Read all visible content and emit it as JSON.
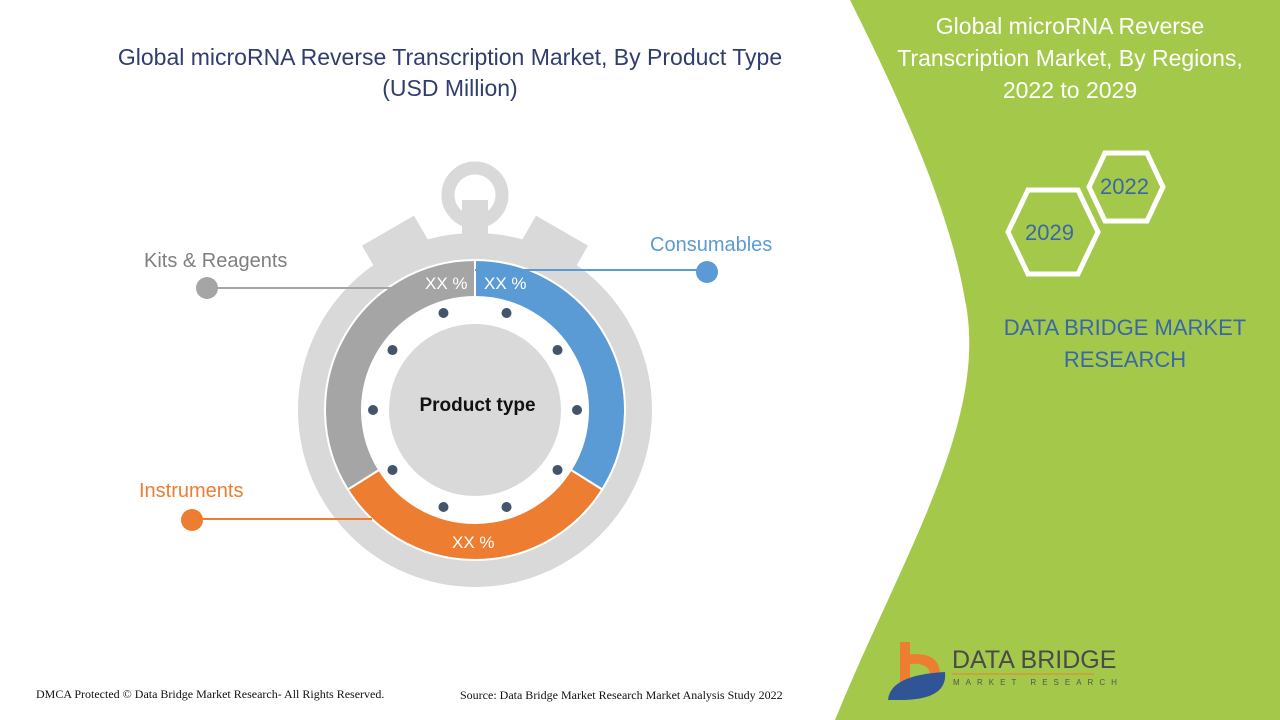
{
  "left_panel": {
    "title_line1": "Global microRNA Reverse Transcription Market, By Product Type",
    "title_line2": "(USD Million)",
    "center_label": "Product type",
    "segments": [
      {
        "name": "Consumables",
        "value_label": "XX %",
        "color": "#5b9bd5"
      },
      {
        "name": "Instruments",
        "value_label": "XX %",
        "color": "#ed7d31"
      },
      {
        "name": "Kits & Reagents",
        "value_label": "XX %",
        "color": "#a5a5a5"
      }
    ]
  },
  "right_panel": {
    "title_line1": "Global microRNA Reverse",
    "title_line2": "Transcription Market, By Regions,",
    "title_line3": "2022 to 2029",
    "year_start": "2022",
    "year_end": "2029",
    "brand_line1": "DATA BRIDGE MARKET",
    "brand_line2": "RESEARCH",
    "accent_color": "#a4c94a"
  },
  "logo": {
    "title": "DATA BRIDGE",
    "subtitle": "MARKET RESEARCH"
  },
  "footer": {
    "copyright": "DMCA Protected © Data Bridge Market Research- All Rights Reserved.",
    "source": "Source: Data Bridge Market Research Market Analysis Study 2022"
  }
}
